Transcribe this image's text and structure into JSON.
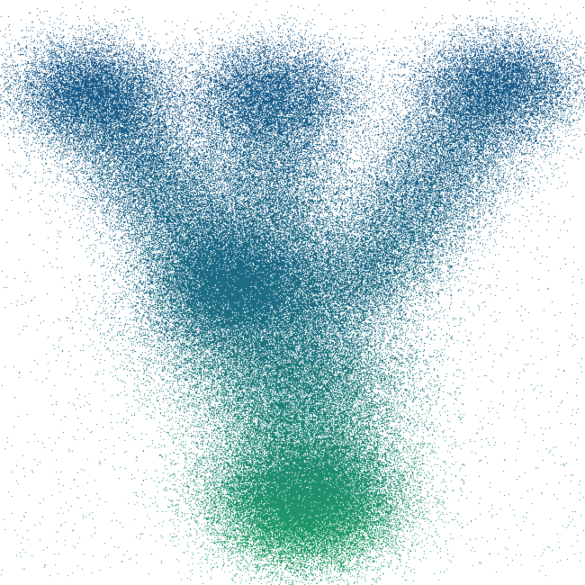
{
  "figure": {
    "kind": "point-cloud",
    "description_shape": "Y",
    "background_color": "#ffffff",
    "colors": {
      "top": "#1a5a8c",
      "middle": "#1d6f84",
      "bottom": "#1e9a68"
    }
  }
}
